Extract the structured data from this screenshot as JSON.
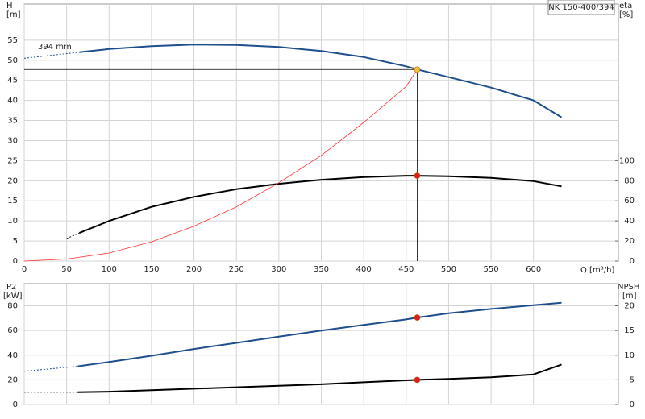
{
  "chart_data": [
    {
      "type": "line",
      "title": "NK 150-400/394",
      "annotation": "394 mm",
      "xlabel": "Q [m³/h]",
      "ylabel": "H",
      "yunit": "[m]",
      "y2label": "eta",
      "y2unit": "[%]",
      "xlim": [
        0,
        700
      ],
      "xticks": [
        0,
        50,
        100,
        150,
        200,
        250,
        300,
        350,
        400,
        450,
        500,
        550,
        600
      ],
      "show_xtick_labels": true,
      "ylim": [
        0,
        64
      ],
      "yticks": [
        0,
        5,
        10,
        15,
        20,
        25,
        30,
        35,
        40,
        45,
        50,
        55
      ],
      "y2lim": [
        0,
        256
      ],
      "y2ticks": [
        0,
        20,
        40,
        60,
        80,
        100
      ],
      "grid": true,
      "series": [
        {
          "color": "#1f4e8c",
          "style": "dashed",
          "width": 1,
          "x": [
            0,
            65
          ],
          "values": [
            50.5,
            52
          ]
        },
        {
          "color": "#1f4e8c",
          "style": "solid",
          "width": 2,
          "x": [
            65,
            100,
            150,
            200,
            250,
            300,
            350,
            400,
            450,
            463,
            500,
            550,
            600,
            633
          ],
          "values": [
            52,
            52.8,
            53.5,
            53.9,
            53.8,
            53.3,
            52.3,
            50.8,
            48.5,
            47.7,
            45.8,
            43.2,
            40,
            35.8
          ]
        },
        {
          "color": "#000000",
          "style": "dashed",
          "width": 1,
          "axis": "y2",
          "x": [
            50,
            65
          ],
          "values": [
            22.4,
            28
          ]
        },
        {
          "color": "#000000",
          "style": "solid",
          "width": 2,
          "axis": "y2",
          "x": [
            65,
            100,
            150,
            200,
            250,
            300,
            350,
            400,
            450,
            463,
            500,
            550,
            600,
            633
          ],
          "values": [
            28,
            40,
            54,
            64,
            71.6,
            77,
            81,
            83.6,
            85,
            85,
            84.4,
            82.8,
            79.6,
            74.4
          ]
        },
        {
          "color": "#ff3030",
          "style": "solid",
          "width": 0.8,
          "x": [
            0,
            50,
            100,
            150,
            200,
            250,
            300,
            350,
            400,
            450,
            463
          ],
          "values": [
            0,
            0.5,
            2,
            4.8,
            8.7,
            13.5,
            19.5,
            26.3,
            34.5,
            43.5,
            47.7
          ]
        }
      ],
      "points": [
        {
          "x": 463,
          "y": 47.7,
          "color": "#f7c23c",
          "guides": true
        },
        {
          "x": 463,
          "y": 85,
          "axis": "y2",
          "color": "#e31b1b"
        }
      ]
    },
    {
      "type": "line",
      "ylabel": "P2",
      "yunit": "[kW]",
      "y2label": "NPSH",
      "y2unit": "[m]",
      "xlim": [
        0,
        700
      ],
      "xticks": [
        0,
        50,
        100,
        150,
        200,
        250,
        300,
        350,
        400,
        450,
        500,
        550,
        600
      ],
      "show_xtick_labels": false,
      "ylim": [
        0,
        98
      ],
      "yticks": [
        0,
        20,
        40,
        60,
        80
      ],
      "y2lim": [
        0,
        24.5
      ],
      "y2ticks": [
        0,
        5,
        10,
        15,
        20
      ],
      "grid": true,
      "series": [
        {
          "color": "#1f4e8c",
          "style": "dashed",
          "width": 1,
          "x": [
            0,
            63
          ],
          "values": [
            27,
            31
          ]
        },
        {
          "color": "#1f4e8c",
          "style": "solid",
          "width": 2,
          "x": [
            63,
            100,
            150,
            200,
            250,
            300,
            350,
            400,
            450,
            463,
            500,
            550,
            600,
            633
          ],
          "values": [
            31,
            34.5,
            39.5,
            45,
            50,
            55,
            60,
            64.5,
            69,
            70.5,
            74,
            77.5,
            80.5,
            82.5
          ]
        },
        {
          "color": "#000000",
          "style": "dashed",
          "width": 1,
          "axis": "y2",
          "x": [
            0,
            63
          ],
          "values": [
            2.5,
            2.5
          ]
        },
        {
          "color": "#000000",
          "style": "solid",
          "width": 2,
          "axis": "y2",
          "x": [
            63,
            100,
            150,
            200,
            250,
            300,
            350,
            400,
            463,
            500,
            550,
            600,
            633
          ],
          "values": [
            2.5,
            2.6,
            2.9,
            3.2,
            3.5,
            3.8,
            4.1,
            4.5,
            5,
            5.2,
            5.5,
            6.1,
            8.1
          ]
        }
      ],
      "points": [
        {
          "x": 463,
          "y": 70.5,
          "color": "#e31b1b"
        },
        {
          "x": 463,
          "y": 5,
          "axis": "y2",
          "color": "#e31b1b"
        }
      ]
    }
  ]
}
